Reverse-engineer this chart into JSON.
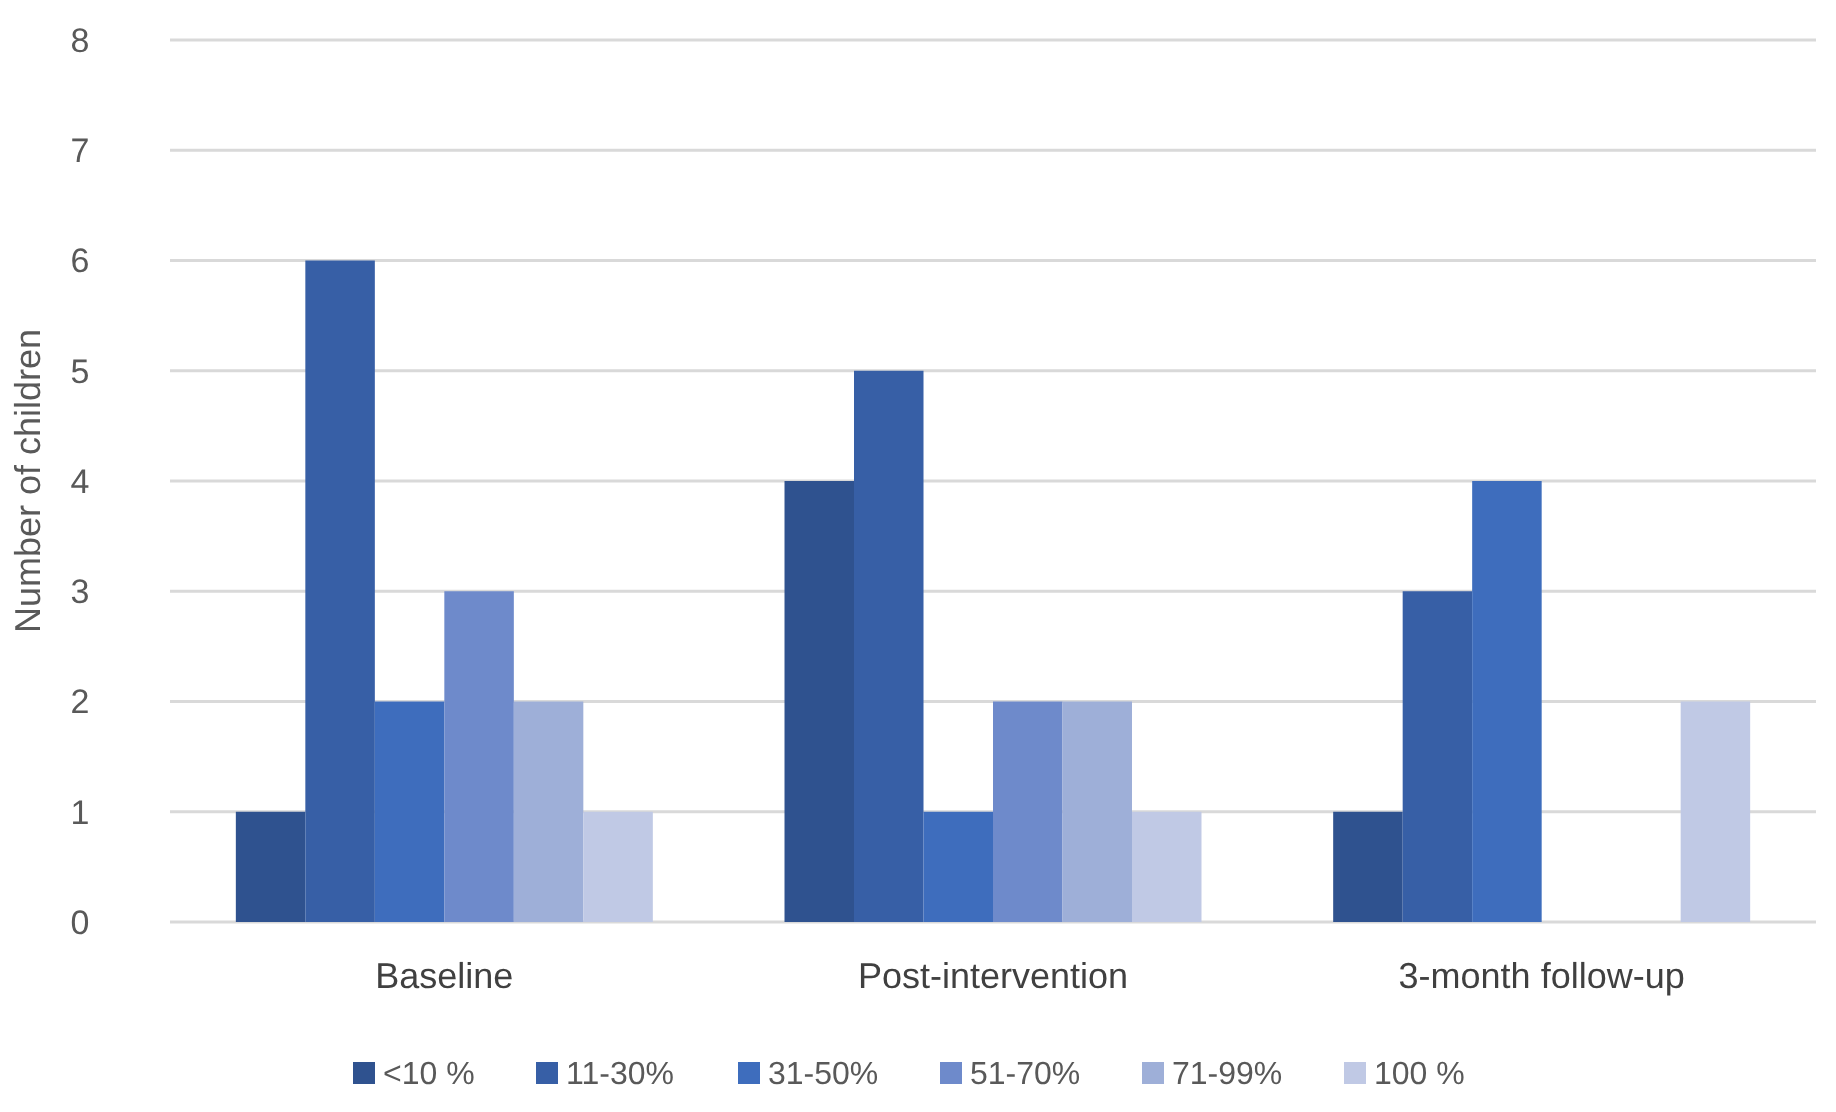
{
  "chart_data": {
    "type": "bar",
    "ylabel": "Number of children",
    "categories": [
      "Baseline",
      "Post-intervention",
      "3-month follow-up"
    ],
    "series": [
      {
        "name": "<10 %",
        "color": "#2f528f",
        "values": [
          1,
          4,
          1
        ]
      },
      {
        "name": "11-30%",
        "color": "#375fa6",
        "values": [
          6,
          5,
          3
        ]
      },
      {
        "name": "31-50%",
        "color": "#3e6dbd",
        "values": [
          2,
          1,
          4
        ]
      },
      {
        "name": "51-70%",
        "color": "#6e8acb",
        "values": [
          3,
          2,
          0
        ]
      },
      {
        "name": "71-99%",
        "color": "#9eafd8",
        "values": [
          2,
          2,
          0
        ]
      },
      {
        "name": "100 %",
        "color": "#c0c9e5",
        "values": [
          1,
          1,
          2
        ]
      }
    ],
    "ylim": [
      0,
      8
    ],
    "yticks": [
      0,
      1,
      2,
      3,
      4,
      5,
      6,
      7,
      8
    ],
    "grid": "y",
    "legend": "bottom"
  }
}
